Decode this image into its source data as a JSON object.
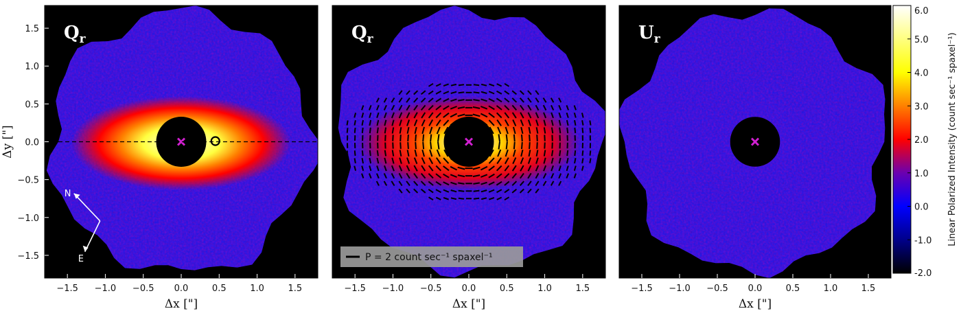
{
  "panels": [
    {
      "id": "left",
      "label_main": "Q",
      "label_sub": "r",
      "style": "disk"
    },
    {
      "id": "middle",
      "label_main": "Q",
      "label_sub": "r",
      "style": "disk-vectors"
    },
    {
      "id": "right",
      "label_main": "U",
      "label_sub": "r",
      "style": "noise"
    }
  ],
  "x_ticks": [
    "−1.5",
    "−1.0",
    "−0.5",
    "0.0",
    "0.5",
    "1.0",
    "1.5"
  ],
  "x_tick_values": [
    -1.5,
    -1.0,
    -0.5,
    0.0,
    0.5,
    1.0,
    1.5
  ],
  "y_ticks": [
    "1.5",
    "1.0",
    "0.5",
    "0.0",
    "−0.5",
    "−1.0",
    "−1.5"
  ],
  "y_tick_values": [
    1.5,
    1.0,
    0.5,
    0.0,
    -0.5,
    -1.0,
    -1.5
  ],
  "xlabel": "Δx [\"]",
  "ylabel": "Δy [\"]",
  "compass": {
    "north": "N",
    "east": "E"
  },
  "vector_legend": "P = 2 count sec⁻¹ spaxel⁻¹",
  "colorbar": {
    "label": "Linear Polarized Intensity (count sec⁻¹ spaxel⁻¹)",
    "ticks": [
      "6.0",
      "5.0",
      "4.0",
      "3.0",
      "2.0",
      "1.0",
      "0.0",
      "-1.0",
      "-2.0"
    ],
    "tick_values": [
      6,
      5,
      4,
      3,
      2,
      1,
      0,
      -1,
      -2
    ],
    "range": [
      -2.0,
      6.0
    ],
    "colors": [
      "#000000",
      "#0000ff",
      "#ff0000",
      "#ffff00",
      "#ffffff"
    ]
  },
  "star_marker_color": "#d020d0",
  "axis_range": [
    -1.8,
    1.8
  ]
}
